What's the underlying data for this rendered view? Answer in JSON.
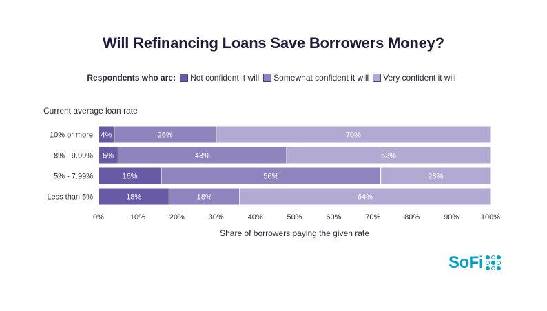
{
  "chart_data": {
    "type": "bar",
    "orientation": "horizontal",
    "stacked": true,
    "title": "Will Refinancing Loans Save Borrowers Money?",
    "legend_prefix": "Respondents who are:",
    "ylabel": "Current average loan rate",
    "xlabel": "Share of borrowers paying the given rate",
    "categories": [
      "10% or more",
      "8% - 9.99%",
      "5% - 7.99%",
      "Less than 5%"
    ],
    "series": [
      {
        "name": "Not confident it will",
        "color": "#6a5aa6",
        "values": [
          4,
          5,
          16,
          18
        ]
      },
      {
        "name": "Somewhat confident it will",
        "color": "#8f84bd",
        "values": [
          26,
          43,
          56,
          18
        ]
      },
      {
        "name": "Very confident it will",
        "color": "#b3aad3",
        "values": [
          70,
          52,
          28,
          64
        ]
      }
    ],
    "value_labels": [
      [
        "4%",
        "5%",
        "16%",
        "18%"
      ],
      [
        "26%",
        "43%",
        "56%",
        "18%"
      ],
      [
        "70%",
        "52%",
        "28%",
        "64%"
      ]
    ],
    "xticks": [
      "0%",
      "10%",
      "20%",
      "30%",
      "40%",
      "50%",
      "60%",
      "70%",
      "80%",
      "90%",
      "100%"
    ],
    "xlim": [
      0,
      100
    ],
    "grid": false,
    "legend_position": "top"
  },
  "branding": {
    "logo_text": "SoFi",
    "logo_icon": "sofi-dots-icon",
    "color": "#00a2c7"
  }
}
